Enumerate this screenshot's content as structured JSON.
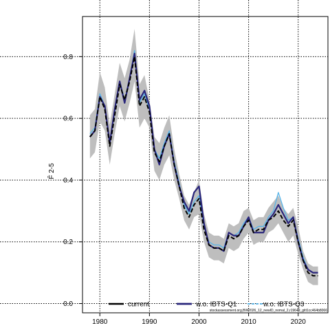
{
  "chart_data": {
    "type": "line",
    "ylabel": "F̄ 2-5",
    "xlim": [
      1976.5,
      2026
    ],
    "ylim": [
      -0.03,
      0.93
    ],
    "x_ticks": [
      1980,
      1990,
      2000,
      2010,
      2020
    ],
    "y_ticks": [
      0.0,
      0.2,
      0.4,
      0.6,
      0.8
    ],
    "y_tick_labels": [
      "0.0",
      "0.2",
      "0.4",
      "0.6",
      "0.8"
    ],
    "grid": true,
    "legend_position": "bottom",
    "x": [
      1978,
      1979,
      1980,
      1981,
      1982,
      1983,
      1984,
      1985,
      1986,
      1987,
      1988,
      1989,
      1990,
      1991,
      1992,
      1993,
      1994,
      1995,
      1996,
      1997,
      1998,
      1999,
      2000,
      2001,
      2002,
      2003,
      2004,
      2005,
      2006,
      2007,
      2008,
      2009,
      2010,
      2011,
      2012,
      2013,
      2014,
      2015,
      2016,
      2017,
      2018,
      2019,
      2020,
      2021,
      2022,
      2023,
      2024
    ],
    "band": {
      "name": "confidence interval",
      "color": "#bebebe",
      "lower": [
        0.47,
        0.49,
        0.59,
        0.56,
        0.45,
        0.55,
        0.64,
        0.59,
        0.65,
        0.72,
        0.57,
        0.6,
        0.57,
        0.43,
        0.4,
        0.45,
        0.48,
        0.4,
        0.34,
        0.27,
        0.24,
        0.28,
        0.29,
        0.2,
        0.15,
        0.14,
        0.14,
        0.13,
        0.18,
        0.17,
        0.18,
        0.21,
        0.23,
        0.19,
        0.2,
        0.2,
        0.23,
        0.24,
        0.26,
        0.23,
        0.2,
        0.22,
        0.16,
        0.11,
        0.07,
        0.06,
        0.06
      ],
      "upper": [
        0.61,
        0.63,
        0.75,
        0.7,
        0.58,
        0.68,
        0.78,
        0.73,
        0.79,
        0.89,
        0.71,
        0.74,
        0.66,
        0.54,
        0.52,
        0.57,
        0.61,
        0.5,
        0.42,
        0.35,
        0.32,
        0.36,
        0.4,
        0.29,
        0.23,
        0.22,
        0.22,
        0.21,
        0.26,
        0.25,
        0.26,
        0.3,
        0.31,
        0.27,
        0.28,
        0.28,
        0.31,
        0.33,
        0.35,
        0.31,
        0.29,
        0.31,
        0.25,
        0.17,
        0.13,
        0.12,
        0.12
      ]
    },
    "series": [
      {
        "name": "current",
        "color": "#000000",
        "values": [
          0.54,
          0.56,
          0.67,
          0.63,
          0.51,
          0.61,
          0.71,
          0.66,
          0.72,
          0.8,
          0.64,
          0.67,
          0.62,
          0.49,
          0.46,
          0.51,
          0.55,
          0.45,
          0.38,
          0.31,
          0.28,
          0.32,
          0.34,
          0.24,
          0.19,
          0.18,
          0.18,
          0.17,
          0.22,
          0.21,
          0.22,
          0.25,
          0.27,
          0.23,
          0.24,
          0.24,
          0.27,
          0.28,
          0.3,
          0.27,
          0.25,
          0.27,
          0.2,
          0.14,
          0.1,
          0.09,
          0.09
        ]
      },
      {
        "name": "w.o. IBTS-Q1",
        "color": "#28247a",
        "values": [
          0.54,
          0.56,
          0.67,
          0.64,
          0.52,
          0.63,
          0.72,
          0.65,
          0.73,
          0.81,
          0.66,
          0.69,
          0.64,
          0.5,
          0.45,
          0.51,
          0.55,
          0.45,
          0.38,
          0.33,
          0.3,
          0.36,
          0.38,
          0.26,
          0.19,
          0.18,
          0.18,
          0.17,
          0.23,
          0.22,
          0.22,
          0.25,
          0.28,
          0.23,
          0.23,
          0.23,
          0.27,
          0.29,
          0.32,
          0.29,
          0.26,
          0.28,
          0.2,
          0.14,
          0.11,
          0.1,
          0.1
        ]
      },
      {
        "name": "w.o. IBTS-Q3",
        "color": "#56b4e9",
        "values": [
          0.55,
          0.57,
          0.68,
          0.64,
          0.52,
          0.62,
          0.72,
          0.66,
          0.73,
          0.82,
          0.65,
          0.68,
          0.63,
          0.5,
          0.47,
          0.52,
          0.56,
          0.46,
          0.39,
          0.32,
          0.29,
          0.33,
          0.35,
          0.25,
          0.2,
          0.19,
          0.19,
          0.18,
          0.23,
          0.22,
          0.23,
          0.26,
          0.28,
          0.24,
          0.25,
          0.25,
          0.28,
          0.3,
          0.36,
          0.31,
          0.27,
          0.28,
          0.21,
          0.15,
          0.11,
          0.1,
          0.1
        ]
      }
    ],
    "footnote": "stockassessment.org,BW2026_12_newID_nomal_2,r19649_gitt1cc464b8066"
  }
}
